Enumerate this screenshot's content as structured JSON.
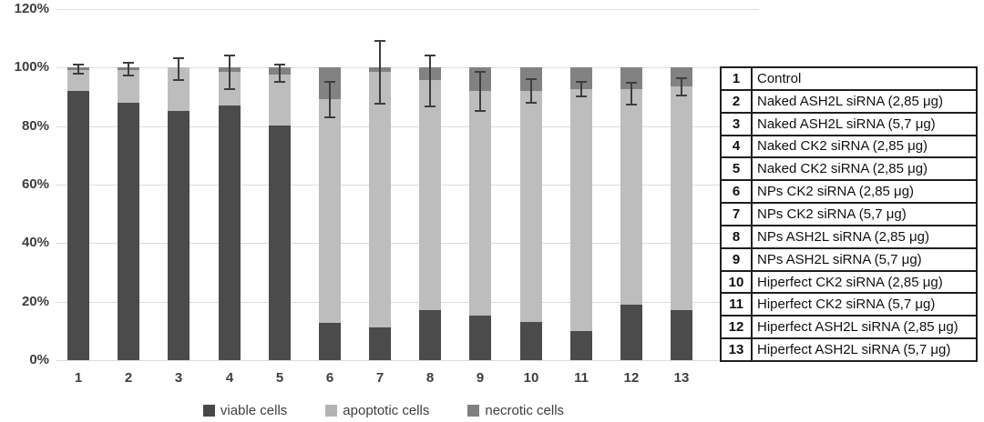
{
  "chart_data": {
    "type": "bar",
    "subtype": "stacked-percent",
    "title": "",
    "xlabel": "",
    "ylabel": "",
    "categories": [
      "1",
      "2",
      "3",
      "4",
      "5",
      "6",
      "7",
      "8",
      "9",
      "10",
      "11",
      "12",
      "13"
    ],
    "series": [
      {
        "name": "viable cells",
        "color": "#4b4b4b",
        "values": [
          92,
          88,
          85,
          87,
          80,
          12.5,
          11,
          17,
          15,
          13,
          10,
          19,
          17
        ]
      },
      {
        "name": "apoptotic cells",
        "color": "#bdbdbd",
        "values": [
          7,
          11,
          15,
          11.5,
          17.5,
          76.5,
          87.5,
          78.5,
          77,
          79,
          82.5,
          73.5,
          76.5
        ]
      },
      {
        "name": "necrotic cells",
        "color": "#828282",
        "values": [
          1,
          1,
          0,
          1.5,
          2.5,
          11,
          1.5,
          4.5,
          8,
          8,
          7.5,
          7.5,
          6.5
        ]
      }
    ],
    "error_bars": {
      "centers": [
        99.5,
        99.5,
        99.5,
        98.5,
        98,
        89,
        98.5,
        95.5,
        92,
        92,
        92.5,
        91,
        93.5
      ],
      "deltas": [
        1.8,
        2.5,
        4,
        6,
        3.2,
        6.3,
        11,
        9,
        7,
        4.3,
        2.8,
        4,
        3.2
      ]
    },
    "y_axis": {
      "min": 0,
      "max": 120,
      "tick_labels": [
        "0%",
        "20%",
        "40%",
        "60%",
        "80%",
        "100%",
        "120%"
      ],
      "grid": true
    },
    "legend": {
      "position": "bottom",
      "items": [
        {
          "label": "viable cells",
          "color": "#474747"
        },
        {
          "label": "apoptotic cells",
          "color": "#b3b3b3"
        },
        {
          "label": "necrotic cells",
          "color": "#7f7f7f"
        }
      ]
    }
  },
  "condition_table": {
    "rows": [
      {
        "num": "1",
        "label": "Control"
      },
      {
        "num": "2",
        "label": "Naked ASH2L siRNA (2,85 μg)"
      },
      {
        "num": "3",
        "label": "Naked ASH2L siRNA (5,7 μg)"
      },
      {
        "num": "4",
        "label": "Naked CK2 siRNA (2,85 μg)"
      },
      {
        "num": "5",
        "label": "Naked CK2 siRNA (2,85 μg)"
      },
      {
        "num": "6",
        "label": "NPs CK2 siRNA (2,85 μg)"
      },
      {
        "num": "7",
        "label": "NPs CK2 siRNA (5,7 μg)"
      },
      {
        "num": "8",
        "label": "NPs ASH2L siRNA (2,85 μg)"
      },
      {
        "num": "9",
        "label": "NPs ASH2L siRNA (5,7 μg)"
      },
      {
        "num": "10",
        "label": "Hiperfect CK2 siRNA (2,85 μg)"
      },
      {
        "num": "11",
        "label": "Hiperfect CK2 siRNA (5,7 μg)"
      },
      {
        "num": "12",
        "label": "Hiperfect ASH2L siRNA (2,85 μg)"
      },
      {
        "num": "13",
        "label": "Hiperfect ASH2L siRNA (5,7 μg)"
      }
    ]
  }
}
